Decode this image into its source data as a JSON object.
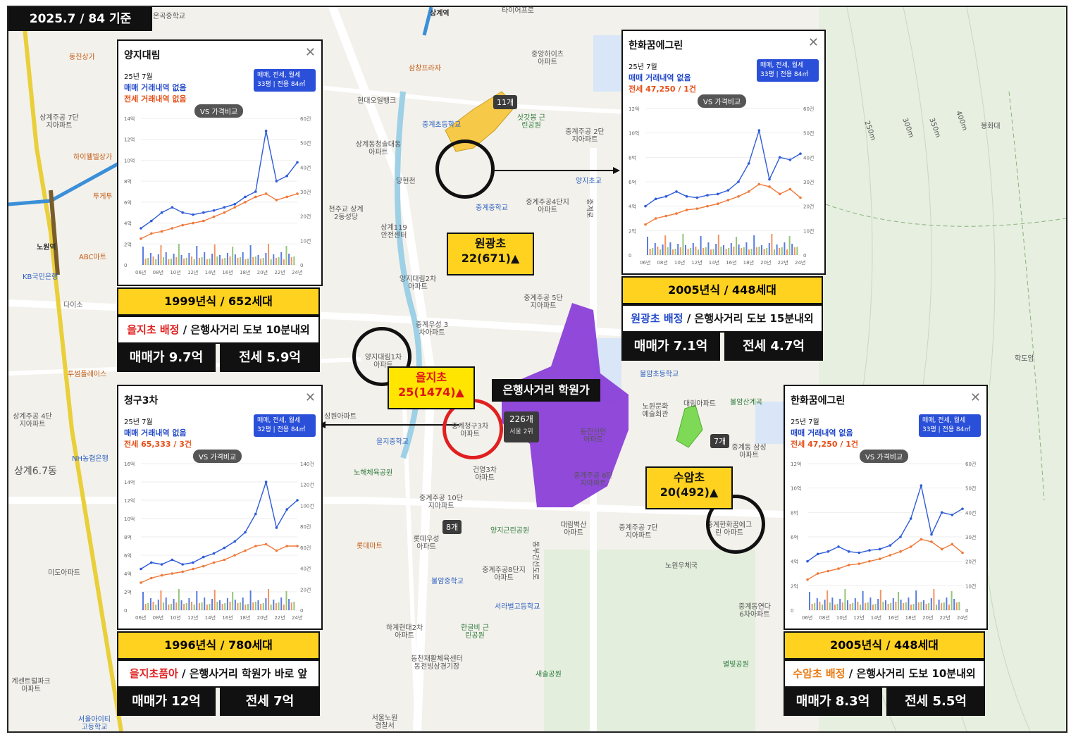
{
  "date_badge": "2025.7 / 84 기준",
  "map_labels": {
    "onguk_middle": "온곡중학교",
    "sanggye_station": "상계역",
    "taeeo": "타이어프로",
    "dongjin": "동진상가",
    "sanggye_apt": "아파트",
    "samsung_plaza": "삼창프라자",
    "junggye_apt": "중앙하이츠 아파트",
    "hyundai_bank": "현대오일뱅크",
    "junggye_cho": "중계초등학교",
    "satgatbong": "삿갓봉 근린공원",
    "junggye_2": "중계주공 2단지아파트",
    "sanggye_7": "상계주공 7단지아파트",
    "hiwell": "하이웰빌상가",
    "sanggye_church": "상계동청솔대동 아파트",
    "dangyeong": "당현천",
    "yangji_cho": "양지초교",
    "twin": "투게투",
    "seoul_subway": "노원역",
    "abc": "ABC마트",
    "kb": "KB국민은행",
    "daiso": "다이소",
    "cheonju": "천주교 상계2동성당",
    "sanggye119": "상계119 안전센터",
    "junggye_middle": "중계중학교",
    "junggye_4": "중계주공4단지 아파트",
    "yangji_2": "양지대림2차 아파트",
    "junggye_5": "중계주공 5단지아파트",
    "junggye_3": "중계우성 3차아파트",
    "yangji_1": "양지대림1차 아파트",
    "tooim": "투썸플레이스",
    "sanggye_4": "상계주공 4단지아파트",
    "nh": "NH농협은행",
    "sanggye67": "상계6.7동",
    "seongwon": "성원아파트",
    "euljihak": "을지중학교",
    "noheah": "노해체육공원",
    "geonyoung": "건영3차 아파트",
    "junggye_10": "중계주공 10단지아파트",
    "miro": "미도아파트",
    "lotte": "롯데마트",
    "lotte_woo": "롯데우성 아파트",
    "yangji_park": "양지근린공원",
    "junggye_8": "중계주공8단지 아파트",
    "buram_cho": "불암중학교",
    "seorabeol": "서라벌고등학교",
    "hagye": "하계현대2차 아파트",
    "hangeul": "한글비 근린공원",
    "dongcheon": "동천재활체육센터 동천빙상경기장",
    "sema": "새솔공원",
    "seoul_nowon": "서울노원 경찰서",
    "center": "계센트럴파크 아파트",
    "seoul_ity": "서울아이티 고등학교",
    "daelim_byeoksan": "대림벽산 아파트",
    "junggye_7": "중계주공 7단지아파트",
    "nowon_post": "노원우체국",
    "nowon_art": "노원문화 예술회관",
    "buram_sanggye": "불암산계곡",
    "junggye_samsung": "중계동 삼성아파트",
    "junggye_6": "중계동연다 6차아파트",
    "byeolbit": "별빛공원",
    "hakdo": "학도암",
    "bonghwa": "봉화대",
    "buram_cho2": "불암초등학교",
    "daerim": "대림아파트",
    "dongil": "동진신안 아파트",
    "junggye_6b": "중계주공 6단지아파트",
    "dist_250": "250m",
    "dist_300": "300m",
    "dist_350": "350m",
    "dist_400": "400m",
    "junggye_hanhwa": "중계한화꿈에그린 아파트",
    "junggye_cheonggu": "중계청구3차 아파트",
    "yangji_dong": "양지대림",
    "dongbu_road": "동부간선도로",
    "jungang": "중계로"
  },
  "markers": {
    "count_11": "11개",
    "count_226": "226개",
    "seoul_rank": "서울 2위",
    "count_7": "7개",
    "count_8": "8개",
    "academy_label": "은행사거리 학원가"
  },
  "schools": {
    "wongwang": {
      "name": "원광초",
      "stat": "22(671)▲"
    },
    "eulji": {
      "name": "을지초",
      "stat": "25(1474)▲"
    },
    "suam": {
      "name": "수암초",
      "stat": "20(492)▲"
    }
  },
  "cards": [
    {
      "title": "양지대림",
      "ym": "25년 7월",
      "line1": "매매 거래내역 없음",
      "line2": "전세 거래내역 없음",
      "select_top": "매매, 전세, 월세",
      "select_bottom": "33평 | 전용 84㎡",
      "vs": "VS 가격비교",
      "y_left": [
        "14억",
        "12억",
        "10억",
        "8억",
        "6억",
        "4억",
        "2억",
        "0"
      ],
      "y_right": [
        "60건",
        "50건",
        "40건",
        "30건",
        "20건",
        "10건",
        "0"
      ],
      "x_ticks": [
        "06년",
        "08년",
        "10년",
        "12년",
        "14년",
        "16년",
        "18년",
        "20년",
        "22년",
        "24년"
      ],
      "sale_series": [
        3.5,
        4.2,
        5.0,
        5.5,
        5.0,
        4.8,
        5.0,
        5.2,
        5.5,
        5.8,
        6.5,
        7.0,
        12.8,
        8.0,
        8.5,
        9.8
      ],
      "rent_series": [
        2.5,
        3.0,
        3.2,
        3.5,
        3.8,
        4.0,
        4.2,
        4.6,
        5.0,
        5.5,
        6.0,
        6.5,
        6.8,
        6.2,
        6.5,
        6.8
      ],
      "y_max": 14
    },
    {
      "title": "한화꿈에그린",
      "ym": "25년 7월",
      "line1": "매매 거래내역 없음",
      "line2": "전세 47,250 / 1건",
      "select_top": "매매, 전세, 월세",
      "select_bottom": "33평 | 전용 84㎡",
      "vs": "VS 가격비교",
      "y_left": [
        "12억",
        "10억",
        "8억",
        "6억",
        "4억",
        "2억",
        "0"
      ],
      "y_right": [
        "60건",
        "50건",
        "40건",
        "30건",
        "20건",
        "10건",
        "0"
      ],
      "x_ticks": [
        "06년",
        "08년",
        "10년",
        "12년",
        "14년",
        "16년",
        "18년",
        "20년",
        "22년",
        "24년"
      ],
      "sale_series": [
        4.0,
        4.6,
        4.8,
        5.2,
        4.8,
        4.7,
        4.9,
        5.0,
        5.3,
        6.0,
        7.5,
        10.2,
        6.2,
        8.0,
        7.8,
        8.3
      ],
      "rent_series": [
        2.5,
        3.0,
        3.2,
        3.4,
        3.7,
        3.8,
        4.0,
        4.2,
        4.5,
        4.8,
        5.2,
        5.8,
        5.6,
        5.0,
        5.4,
        4.7
      ],
      "y_max": 12
    },
    {
      "title": "청구3차",
      "ym": "25년 7월",
      "line1": "매매 거래내역 없음",
      "line2": "전세 65,333 / 3건",
      "select_top": "매매, 전세, 월세",
      "select_bottom": "32평 | 전용 84㎡",
      "vs": "VS 가격비교",
      "y_left": [
        "16억",
        "14억",
        "12억",
        "10억",
        "8억",
        "6억",
        "4억",
        "2억",
        "0"
      ],
      "y_right": [
        "140건",
        "120건",
        "100건",
        "80건",
        "60건",
        "40건",
        "20건",
        "0"
      ],
      "x_ticks": [
        "06년",
        "08년",
        "10년",
        "12년",
        "14년",
        "16년",
        "18년",
        "20년",
        "22년",
        "24년"
      ],
      "sale_series": [
        4.5,
        5.2,
        5.0,
        5.5,
        5.0,
        5.2,
        5.8,
        6.2,
        6.8,
        7.5,
        8.5,
        10.5,
        14.0,
        9.0,
        11.0,
        12.0
      ],
      "rent_series": [
        3.0,
        3.5,
        3.8,
        4.0,
        4.2,
        4.5,
        4.8,
        5.2,
        5.5,
        6.0,
        6.5,
        7.0,
        7.2,
        6.5,
        7.0,
        7.0
      ],
      "y_max": 16
    },
    {
      "title": "한화꿈에그린",
      "ym": "25년 7월",
      "line1": "매매 거래내역 없음",
      "line2": "전세 47,250 / 1건",
      "select_top": "매매, 전세, 월세",
      "select_bottom": "33평 | 전용 84㎡",
      "vs": "VS 가격비교",
      "y_left": [
        "12억",
        "10억",
        "8억",
        "6억",
        "4억",
        "2억",
        "0"
      ],
      "y_right": [
        "60건",
        "50건",
        "40건",
        "30건",
        "20건",
        "10건",
        "0"
      ],
      "x_ticks": [
        "06년",
        "08년",
        "10년",
        "12년",
        "14년",
        "16년",
        "18년",
        "20년",
        "22년",
        "24년"
      ],
      "sale_series": [
        4.0,
        4.6,
        4.8,
        5.2,
        4.8,
        4.7,
        4.9,
        5.0,
        5.3,
        6.0,
        7.5,
        10.2,
        6.2,
        8.0,
        7.8,
        8.3
      ],
      "rent_series": [
        2.5,
        3.0,
        3.2,
        3.4,
        3.7,
        3.8,
        4.0,
        4.2,
        4.5,
        4.8,
        5.2,
        5.8,
        5.6,
        5.0,
        5.4,
        4.7
      ],
      "y_max": 12
    }
  ],
  "infos": [
    {
      "year": "1999년식 / 652세대",
      "note_hl": "을지초 배정",
      "note_rest": " / 은행사거리 도보 10분내외",
      "price": "매매가 9.7억",
      "rent": "전세 5.9억"
    },
    {
      "year": "2005년식 / 448세대",
      "note_hl": "원광초 배정",
      "note_rest": " / 은행사거리 도보 15분내외",
      "price": "매매가 7.1억",
      "rent": "전세 4.7억"
    },
    {
      "year": "1996년식 / 780세대",
      "note_hl": "을지초품아",
      "note_rest": " / 은행사거리 학원가 바로 앞",
      "price": "매매가 12억",
      "rent": "전세 7억"
    },
    {
      "year": "2005년식 / 448세대",
      "note_hl": "수암초 배정",
      "note_rest": " / 은행사거리 도보 10분내외",
      "price": "매매가 8.3억",
      "rent": "전세 5.5억"
    }
  ],
  "colors": {
    "yellow": "#ffd21f",
    "purple": "#8a3fd8",
    "green": "#7ed957",
    "sale": "#2e5bd8",
    "rent": "#ef7a3a"
  }
}
